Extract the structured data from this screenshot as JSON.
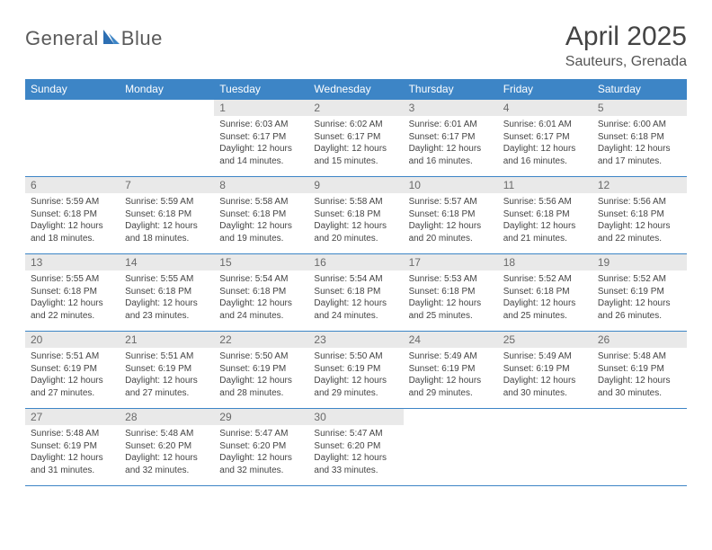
{
  "logo": {
    "text1": "General",
    "text2": "Blue"
  },
  "title": "April 2025",
  "location": "Sauteurs, Grenada",
  "colors": {
    "header_bg": "#3d85c6",
    "header_text": "#ffffff",
    "daynum_bg": "#e9e9e9",
    "daynum_text": "#6a6a6a",
    "body_text": "#444444",
    "rule": "#3d85c6",
    "page_bg": "#ffffff"
  },
  "fonts": {
    "title_size_pt": 22,
    "location_size_pt": 12,
    "header_size_pt": 9,
    "daynum_size_pt": 9,
    "body_size_pt": 7.5
  },
  "day_headers": [
    "Sunday",
    "Monday",
    "Tuesday",
    "Wednesday",
    "Thursday",
    "Friday",
    "Saturday"
  ],
  "weeks": [
    [
      {
        "n": "",
        "sunrise": "",
        "sunset": "",
        "daylight": ""
      },
      {
        "n": "",
        "sunrise": "",
        "sunset": "",
        "daylight": ""
      },
      {
        "n": "1",
        "sunrise": "Sunrise: 6:03 AM",
        "sunset": "Sunset: 6:17 PM",
        "daylight": "Daylight: 12 hours and 14 minutes."
      },
      {
        "n": "2",
        "sunrise": "Sunrise: 6:02 AM",
        "sunset": "Sunset: 6:17 PM",
        "daylight": "Daylight: 12 hours and 15 minutes."
      },
      {
        "n": "3",
        "sunrise": "Sunrise: 6:01 AM",
        "sunset": "Sunset: 6:17 PM",
        "daylight": "Daylight: 12 hours and 16 minutes."
      },
      {
        "n": "4",
        "sunrise": "Sunrise: 6:01 AM",
        "sunset": "Sunset: 6:17 PM",
        "daylight": "Daylight: 12 hours and 16 minutes."
      },
      {
        "n": "5",
        "sunrise": "Sunrise: 6:00 AM",
        "sunset": "Sunset: 6:18 PM",
        "daylight": "Daylight: 12 hours and 17 minutes."
      }
    ],
    [
      {
        "n": "6",
        "sunrise": "Sunrise: 5:59 AM",
        "sunset": "Sunset: 6:18 PM",
        "daylight": "Daylight: 12 hours and 18 minutes."
      },
      {
        "n": "7",
        "sunrise": "Sunrise: 5:59 AM",
        "sunset": "Sunset: 6:18 PM",
        "daylight": "Daylight: 12 hours and 18 minutes."
      },
      {
        "n": "8",
        "sunrise": "Sunrise: 5:58 AM",
        "sunset": "Sunset: 6:18 PM",
        "daylight": "Daylight: 12 hours and 19 minutes."
      },
      {
        "n": "9",
        "sunrise": "Sunrise: 5:58 AM",
        "sunset": "Sunset: 6:18 PM",
        "daylight": "Daylight: 12 hours and 20 minutes."
      },
      {
        "n": "10",
        "sunrise": "Sunrise: 5:57 AM",
        "sunset": "Sunset: 6:18 PM",
        "daylight": "Daylight: 12 hours and 20 minutes."
      },
      {
        "n": "11",
        "sunrise": "Sunrise: 5:56 AM",
        "sunset": "Sunset: 6:18 PM",
        "daylight": "Daylight: 12 hours and 21 minutes."
      },
      {
        "n": "12",
        "sunrise": "Sunrise: 5:56 AM",
        "sunset": "Sunset: 6:18 PM",
        "daylight": "Daylight: 12 hours and 22 minutes."
      }
    ],
    [
      {
        "n": "13",
        "sunrise": "Sunrise: 5:55 AM",
        "sunset": "Sunset: 6:18 PM",
        "daylight": "Daylight: 12 hours and 22 minutes."
      },
      {
        "n": "14",
        "sunrise": "Sunrise: 5:55 AM",
        "sunset": "Sunset: 6:18 PM",
        "daylight": "Daylight: 12 hours and 23 minutes."
      },
      {
        "n": "15",
        "sunrise": "Sunrise: 5:54 AM",
        "sunset": "Sunset: 6:18 PM",
        "daylight": "Daylight: 12 hours and 24 minutes."
      },
      {
        "n": "16",
        "sunrise": "Sunrise: 5:54 AM",
        "sunset": "Sunset: 6:18 PM",
        "daylight": "Daylight: 12 hours and 24 minutes."
      },
      {
        "n": "17",
        "sunrise": "Sunrise: 5:53 AM",
        "sunset": "Sunset: 6:18 PM",
        "daylight": "Daylight: 12 hours and 25 minutes."
      },
      {
        "n": "18",
        "sunrise": "Sunrise: 5:52 AM",
        "sunset": "Sunset: 6:18 PM",
        "daylight": "Daylight: 12 hours and 25 minutes."
      },
      {
        "n": "19",
        "sunrise": "Sunrise: 5:52 AM",
        "sunset": "Sunset: 6:19 PM",
        "daylight": "Daylight: 12 hours and 26 minutes."
      }
    ],
    [
      {
        "n": "20",
        "sunrise": "Sunrise: 5:51 AM",
        "sunset": "Sunset: 6:19 PM",
        "daylight": "Daylight: 12 hours and 27 minutes."
      },
      {
        "n": "21",
        "sunrise": "Sunrise: 5:51 AM",
        "sunset": "Sunset: 6:19 PM",
        "daylight": "Daylight: 12 hours and 27 minutes."
      },
      {
        "n": "22",
        "sunrise": "Sunrise: 5:50 AM",
        "sunset": "Sunset: 6:19 PM",
        "daylight": "Daylight: 12 hours and 28 minutes."
      },
      {
        "n": "23",
        "sunrise": "Sunrise: 5:50 AM",
        "sunset": "Sunset: 6:19 PM",
        "daylight": "Daylight: 12 hours and 29 minutes."
      },
      {
        "n": "24",
        "sunrise": "Sunrise: 5:49 AM",
        "sunset": "Sunset: 6:19 PM",
        "daylight": "Daylight: 12 hours and 29 minutes."
      },
      {
        "n": "25",
        "sunrise": "Sunrise: 5:49 AM",
        "sunset": "Sunset: 6:19 PM",
        "daylight": "Daylight: 12 hours and 30 minutes."
      },
      {
        "n": "26",
        "sunrise": "Sunrise: 5:48 AM",
        "sunset": "Sunset: 6:19 PM",
        "daylight": "Daylight: 12 hours and 30 minutes."
      }
    ],
    [
      {
        "n": "27",
        "sunrise": "Sunrise: 5:48 AM",
        "sunset": "Sunset: 6:19 PM",
        "daylight": "Daylight: 12 hours and 31 minutes."
      },
      {
        "n": "28",
        "sunrise": "Sunrise: 5:48 AM",
        "sunset": "Sunset: 6:20 PM",
        "daylight": "Daylight: 12 hours and 32 minutes."
      },
      {
        "n": "29",
        "sunrise": "Sunrise: 5:47 AM",
        "sunset": "Sunset: 6:20 PM",
        "daylight": "Daylight: 12 hours and 32 minutes."
      },
      {
        "n": "30",
        "sunrise": "Sunrise: 5:47 AM",
        "sunset": "Sunset: 6:20 PM",
        "daylight": "Daylight: 12 hours and 33 minutes."
      },
      {
        "n": "",
        "sunrise": "",
        "sunset": "",
        "daylight": ""
      },
      {
        "n": "",
        "sunrise": "",
        "sunset": "",
        "daylight": ""
      },
      {
        "n": "",
        "sunrise": "",
        "sunset": "",
        "daylight": ""
      }
    ]
  ]
}
